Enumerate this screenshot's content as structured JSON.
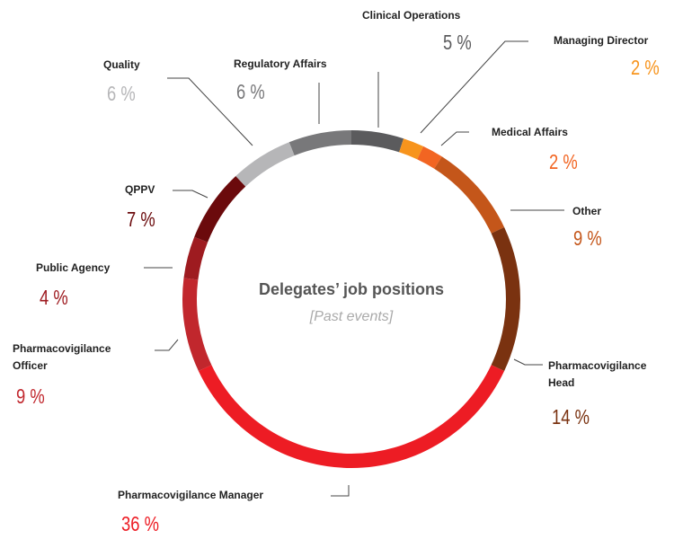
{
  "chart_data": {
    "type": "donut",
    "title": "Delegates’ job positions",
    "subtitle": "[Past events]",
    "categories": [
      "Clinical Operations",
      "Managing Director",
      "Medical Affairs",
      "Other",
      "Pharmacovigilance Head",
      "Pharmacovigilance Manager",
      "Pharmacovigilance Officer",
      "Public Agency",
      "QPPV",
      "Quality",
      "Regulatory Affairs"
    ],
    "values": [
      5,
      2,
      2,
      9,
      14,
      36,
      9,
      4,
      7,
      6,
      6
    ],
    "value_labels": [
      "5 %",
      "2 %",
      "2 %",
      "9 %",
      "14 %",
      "36 %",
      "9 %",
      "4 %",
      "7 %",
      "6 %",
      "6 %"
    ],
    "colors": [
      "#5b5b5d",
      "#f7941d",
      "#f26522",
      "#c4561a",
      "#7a3210",
      "#ed1c24",
      "#c1272d",
      "#9e1b20",
      "#6b0a0c",
      "#b6b6b8",
      "#78787a"
    ]
  }
}
